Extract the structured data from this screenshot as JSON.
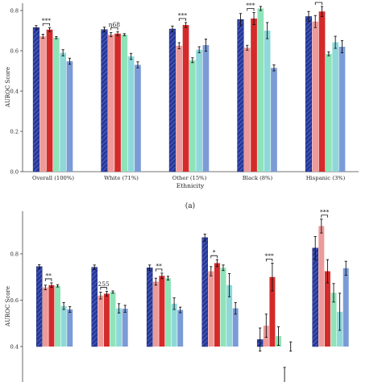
{
  "chart_data": [
    {
      "type": "bar",
      "panel_label": "(a)",
      "xlabel": "Ethnicity",
      "ylabel": "AUROC Score",
      "ylim": [
        0.0,
        0.85
      ],
      "yticks": [
        "0.0",
        "0.2",
        "0.4",
        "0.6",
        "0.8"
      ],
      "grid": false,
      "legend": "none",
      "categories": [
        "Overall (100%)",
        "White (71%)",
        "Other (15%)",
        "Black (8%)",
        "Hispanic (3%)"
      ],
      "series": [
        {
          "color": "#26389a",
          "hatch": true,
          "values": [
            0.715,
            0.705,
            0.708,
            0.755,
            0.77
          ],
          "err": [
            0.01,
            0.012,
            0.015,
            0.03,
            0.025
          ]
        },
        {
          "color": "#ee9a9a",
          "values": [
            0.672,
            0.68,
            0.625,
            0.615,
            0.745
          ],
          "err": [
            0.01,
            0.01,
            0.015,
            0.012,
            0.03
          ]
        },
        {
          "color": "#d42a2a",
          "values": [
            0.705,
            0.685,
            0.728,
            0.76,
            0.795
          ],
          "err": [
            0.01,
            0.01,
            0.012,
            0.03,
            0.025
          ]
        },
        {
          "color": "#8fe3b8",
          "values": [
            0.665,
            0.68,
            0.553,
            0.81,
            0.585
          ],
          "err": [
            0.005,
            0.005,
            0.012,
            0.01,
            0.01
          ]
        },
        {
          "color": "#8ed8da",
          "values": [
            0.59,
            0.572,
            0.605,
            0.7,
            0.642
          ],
          "err": [
            0.015,
            0.015,
            0.015,
            0.04,
            0.03
          ]
        },
        {
          "color": "#7b9bd6",
          "values": [
            0.548,
            0.53,
            0.628,
            0.515,
            0.62
          ],
          "err": [
            0.015,
            0.015,
            0.03,
            0.015,
            0.03
          ]
        }
      ],
      "annotations": [
        {
          "category": 0,
          "from": 1,
          "to": 2,
          "text": "***"
        },
        {
          "category": 1,
          "from": 1,
          "to": 2,
          "text": "ƞ68"
        },
        {
          "category": 2,
          "from": 1,
          "to": 2,
          "text": "***"
        },
        {
          "category": 3,
          "from": 1,
          "to": 2,
          "text": "***"
        },
        {
          "category": 4,
          "from": 1,
          "to": 2,
          "text": ""
        }
      ]
    },
    {
      "type": "bar",
      "ylabel": "AUROC Score",
      "ylim": [
        0.0,
        1.0
      ],
      "yticks": [
        "0.4",
        "0.6",
        "0.8"
      ],
      "grid": false,
      "legend": "none",
      "categories": [
        "",
        "",
        "",
        "",
        "",
        ""
      ],
      "series": [
        {
          "color": "#26389a",
          "hatch": true,
          "values": [
            0.745,
            0.742,
            0.74,
            0.87,
            0.43,
            0.825
          ],
          "err": [
            0.008,
            0.01,
            0.012,
            0.015,
            0.05,
            0.05
          ]
        },
        {
          "color": "#ee9a9a",
          "values": [
            0.655,
            0.62,
            0.68,
            0.725,
            0.49,
            0.92
          ],
          "err": [
            0.01,
            0.015,
            0.015,
            0.02,
            0.05,
            0.03
          ]
        },
        {
          "color": "#d42a2a",
          "values": [
            0.665,
            0.628,
            0.705,
            0.76,
            0.7,
            0.725
          ],
          "err": [
            0.01,
            0.01,
            0.012,
            0.015,
            0.06,
            0.05
          ]
        },
        {
          "color": "#8fe3b8",
          "values": [
            0.662,
            0.635,
            0.695,
            0.74,
            0.445,
            0.632
          ],
          "err": [
            0.005,
            0.005,
            0.008,
            0.012,
            0.04,
            0.04
          ]
        },
        {
          "color": "#8ed8da",
          "values": [
            0.575,
            0.565,
            0.585,
            0.665,
            0.26,
            0.55
          ],
          "err": [
            0.015,
            0.02,
            0.025,
            0.05,
            0.05,
            0.08
          ]
        },
        {
          "color": "#7b9bd6",
          "values": [
            0.56,
            0.563,
            0.558,
            0.565,
            0.4,
            0.738
          ],
          "err": [
            0.012,
            0.015,
            0.012,
            0.025,
            0.02,
            0.03
          ]
        }
      ],
      "annotations": [
        {
          "category": 0,
          "from": 1,
          "to": 2,
          "text": "**"
        },
        {
          "category": 1,
          "from": 1,
          "to": 2,
          "text": "255"
        },
        {
          "category": 2,
          "from": 1,
          "to": 2,
          "text": "**"
        },
        {
          "category": 3,
          "from": 1,
          "to": 2,
          "text": "*"
        },
        {
          "category": 4,
          "from": 1,
          "to": 2,
          "text": "***"
        },
        {
          "category": 5,
          "from": 1,
          "to": 2,
          "text": "***"
        }
      ]
    }
  ]
}
